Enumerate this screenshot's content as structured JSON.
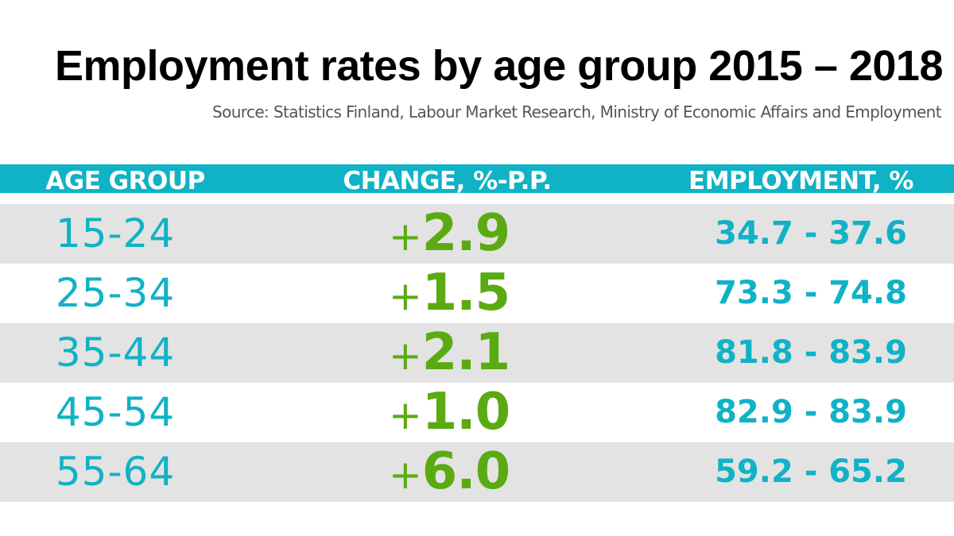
{
  "title": "Employment rates by age group 2015 – 2018",
  "source": "Source: Statistics Finland, Labour Market Research, Ministry of Economic Affairs and Employment",
  "colors": {
    "header_band": "#10b2c6",
    "age_text": "#10b2c6",
    "change_text": "#5aab12",
    "range_text": "#10b2c6",
    "row_shade": "#e3e3e3"
  },
  "chart_data": {
    "type": "table",
    "title": "Employment rates by age group 2015 – 2018",
    "columns": [
      "AGE GROUP",
      "CHANGE, %-P.P.",
      "EMPLOYMENT, %"
    ],
    "rows": [
      {
        "age_group": "15-24",
        "change_sign": "+",
        "change_value": "2.9",
        "employment": "34.7 - 37.6"
      },
      {
        "age_group": "25-34",
        "change_sign": "+",
        "change_value": "1.5",
        "employment": "73.3 - 74.8"
      },
      {
        "age_group": "35-44",
        "change_sign": "+",
        "change_value": "2.1",
        "employment": "81.8 - 83.9"
      },
      {
        "age_group": "45-54",
        "change_sign": "+",
        "change_value": "1.0",
        "employment": "82.9 - 83.9"
      },
      {
        "age_group": "55-64",
        "change_sign": "+",
        "change_value": "6.0",
        "employment": "59.2 - 65.2"
      }
    ]
  }
}
